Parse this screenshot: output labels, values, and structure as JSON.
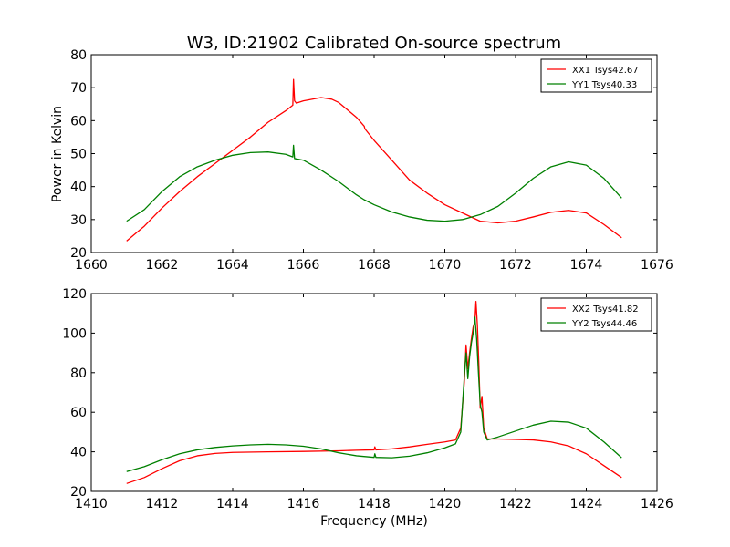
{
  "figure": {
    "title": "W3, ID:21902 Calibrated On-source spectrum",
    "shared_ylabel": "Power in Kelvin",
    "shared_xlabel": "Frequency (MHz)"
  },
  "chart_data": [
    {
      "type": "line",
      "title": "W3, ID:21902 Calibrated On-source spectrum",
      "ylabel": "Power in Kelvin",
      "xlim": [
        1660,
        1676
      ],
      "ylim": [
        20,
        80
      ],
      "xticks": [
        1660,
        1662,
        1664,
        1666,
        1668,
        1670,
        1672,
        1674,
        1676
      ],
      "yticks": [
        20,
        30,
        40,
        50,
        60,
        70,
        80
      ],
      "grid": false,
      "legend_position": "top-right",
      "colors": {
        "XX1 Tsys42.67": "#ff0000",
        "YY1 Tsys40.33": "#008000"
      },
      "series": [
        {
          "name": "XX1 Tsys42.67",
          "color": "#ff0000",
          "points": [
            [
              1661.0,
              23.5
            ],
            [
              1661.5,
              28.0
            ],
            [
              1662.0,
              33.5
            ],
            [
              1662.5,
              38.5
            ],
            [
              1663.0,
              43.0
            ],
            [
              1663.5,
              47.0
            ],
            [
              1664.0,
              51.0
            ],
            [
              1664.5,
              55.0
            ],
            [
              1665.0,
              59.5
            ],
            [
              1665.5,
              63.0
            ],
            [
              1665.7,
              64.7
            ],
            [
              1665.72,
              72.5
            ],
            [
              1665.75,
              66.0
            ],
            [
              1665.8,
              65.3
            ],
            [
              1666.0,
              66.0
            ],
            [
              1666.5,
              67.0
            ],
            [
              1666.8,
              66.5
            ],
            [
              1667.0,
              65.5
            ],
            [
              1667.5,
              61.0
            ],
            [
              1667.72,
              58.3
            ],
            [
              1667.74,
              57.5
            ],
            [
              1668.0,
              54.0
            ],
            [
              1668.5,
              48.0
            ],
            [
              1669.0,
              42.0
            ],
            [
              1669.5,
              38.0
            ],
            [
              1670.0,
              34.5
            ],
            [
              1670.5,
              32.0
            ],
            [
              1671.0,
              29.5
            ],
            [
              1671.5,
              29.0
            ],
            [
              1672.0,
              29.5
            ],
            [
              1672.5,
              30.8
            ],
            [
              1673.0,
              32.2
            ],
            [
              1673.5,
              32.8
            ],
            [
              1674.0,
              32.0
            ],
            [
              1674.5,
              28.5
            ],
            [
              1675.0,
              24.5
            ]
          ]
        },
        {
          "name": "YY1 Tsys40.33",
          "color": "#008000",
          "points": [
            [
              1661.0,
              29.5
            ],
            [
              1661.5,
              33.0
            ],
            [
              1662.0,
              38.5
            ],
            [
              1662.5,
              43.0
            ],
            [
              1663.0,
              46.0
            ],
            [
              1663.5,
              48.0
            ],
            [
              1664.0,
              49.5
            ],
            [
              1664.5,
              50.3
            ],
            [
              1665.0,
              50.5
            ],
            [
              1665.5,
              49.8
            ],
            [
              1665.7,
              49.0
            ],
            [
              1665.72,
              52.5
            ],
            [
              1665.75,
              48.5
            ],
            [
              1666.0,
              48.0
            ],
            [
              1666.5,
              45.0
            ],
            [
              1667.0,
              41.5
            ],
            [
              1667.5,
              37.5
            ],
            [
              1667.72,
              36.0
            ],
            [
              1668.0,
              34.5
            ],
            [
              1668.5,
              32.3
            ],
            [
              1669.0,
              30.8
            ],
            [
              1669.5,
              29.8
            ],
            [
              1670.0,
              29.5
            ],
            [
              1670.5,
              30.0
            ],
            [
              1671.0,
              31.5
            ],
            [
              1671.5,
              34.0
            ],
            [
              1672.0,
              38.0
            ],
            [
              1672.5,
              42.5
            ],
            [
              1673.0,
              46.0
            ],
            [
              1673.5,
              47.5
            ],
            [
              1674.0,
              46.5
            ],
            [
              1674.5,
              42.5
            ],
            [
              1675.0,
              36.5
            ]
          ]
        }
      ]
    },
    {
      "type": "line",
      "xlabel": "Frequency (MHz)",
      "xlim": [
        1410,
        1426
      ],
      "ylim": [
        20,
        120
      ],
      "xticks": [
        1410,
        1412,
        1414,
        1416,
        1418,
        1420,
        1422,
        1424,
        1426
      ],
      "yticks": [
        20,
        40,
        60,
        80,
        100,
        120
      ],
      "grid": false,
      "legend_position": "top-right",
      "colors": {
        "XX2 Tsys41.82": "#ff0000",
        "YY2 Tsys44.46": "#008000"
      },
      "series": [
        {
          "name": "XX2 Tsys41.82",
          "color": "#ff0000",
          "points": [
            [
              1411.0,
              24.0
            ],
            [
              1411.5,
              27.0
            ],
            [
              1412.0,
              31.5
            ],
            [
              1412.5,
              35.5
            ],
            [
              1413.0,
              38.0
            ],
            [
              1413.5,
              39.2
            ],
            [
              1414.0,
              39.7
            ],
            [
              1415.0,
              40.0
            ],
            [
              1416.0,
              40.2
            ],
            [
              1417.0,
              40.5
            ],
            [
              1417.5,
              40.8
            ],
            [
              1418.0,
              41.0
            ],
            [
              1418.02,
              42.5
            ],
            [
              1418.05,
              41.0
            ],
            [
              1418.5,
              41.5
            ],
            [
              1419.0,
              42.5
            ],
            [
              1419.5,
              43.8
            ],
            [
              1420.0,
              45.0
            ],
            [
              1420.3,
              46.0
            ],
            [
              1420.45,
              52.0
            ],
            [
              1420.55,
              75.0
            ],
            [
              1420.6,
              94.0
            ],
            [
              1420.65,
              82.0
            ],
            [
              1420.7,
              90.0
            ],
            [
              1420.75,
              97.0
            ],
            [
              1420.8,
              103.0
            ],
            [
              1420.85,
              106.0
            ],
            [
              1420.88,
              116.0
            ],
            [
              1420.92,
              104.0
            ],
            [
              1420.96,
              85.0
            ],
            [
              1421.0,
              62.0
            ],
            [
              1421.05,
              68.0
            ],
            [
              1421.1,
              52.0
            ],
            [
              1421.2,
              46.5
            ],
            [
              1421.5,
              46.5
            ],
            [
              1422.0,
              46.3
            ],
            [
              1422.5,
              46.0
            ],
            [
              1423.0,
              45.0
            ],
            [
              1423.5,
              43.0
            ],
            [
              1424.0,
              39.0
            ],
            [
              1424.5,
              33.0
            ],
            [
              1425.0,
              27.0
            ]
          ]
        },
        {
          "name": "YY2 Tsys44.46",
          "color": "#008000",
          "points": [
            [
              1411.0,
              30.0
            ],
            [
              1411.5,
              32.5
            ],
            [
              1412.0,
              36.0
            ],
            [
              1412.5,
              39.0
            ],
            [
              1413.0,
              41.0
            ],
            [
              1413.5,
              42.2
            ],
            [
              1414.0,
              43.0
            ],
            [
              1414.5,
              43.5
            ],
            [
              1415.0,
              43.8
            ],
            [
              1415.5,
              43.5
            ],
            [
              1416.0,
              42.8
            ],
            [
              1416.5,
              41.5
            ],
            [
              1417.0,
              39.5
            ],
            [
              1417.5,
              38.0
            ],
            [
              1418.0,
              37.2
            ],
            [
              1418.02,
              39.0
            ],
            [
              1418.05,
              37.2
            ],
            [
              1418.5,
              37.0
            ],
            [
              1419.0,
              37.8
            ],
            [
              1419.5,
              39.5
            ],
            [
              1420.0,
              42.0
            ],
            [
              1420.3,
              44.0
            ],
            [
              1420.45,
              50.0
            ],
            [
              1420.55,
              78.0
            ],
            [
              1420.6,
              90.0
            ],
            [
              1420.65,
              77.0
            ],
            [
              1420.7,
              88.0
            ],
            [
              1420.75,
              95.0
            ],
            [
              1420.8,
              100.0
            ],
            [
              1420.85,
              108.0
            ],
            [
              1420.9,
              97.0
            ],
            [
              1420.95,
              80.0
            ],
            [
              1421.0,
              64.0
            ],
            [
              1421.05,
              60.0
            ],
            [
              1421.1,
              50.0
            ],
            [
              1421.2,
              46.0
            ],
            [
              1421.5,
              47.5
            ],
            [
              1422.0,
              50.5
            ],
            [
              1422.5,
              53.5
            ],
            [
              1423.0,
              55.5
            ],
            [
              1423.5,
              55.0
            ],
            [
              1424.0,
              52.0
            ],
            [
              1424.5,
              45.0
            ],
            [
              1425.0,
              37.0
            ]
          ]
        }
      ]
    }
  ]
}
